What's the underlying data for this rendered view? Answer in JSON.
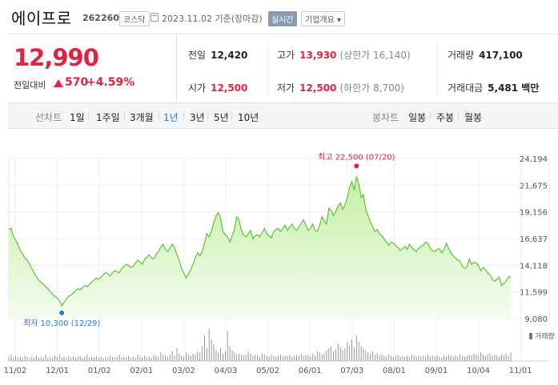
{
  "header": {
    "name": "에이프로",
    "code": "262260",
    "market": "코스닥",
    "date": "2023.11.02 기준(장마감)",
    "realtime_label": "실시간",
    "corp_label": "기업개요 ▾"
  },
  "quote": {
    "price": "12,990",
    "change_label": "전일대비",
    "change": "570",
    "change_pct": "+4.59%",
    "prev_label": "전일",
    "prev": "12,420",
    "high_label": "고가",
    "high": "13,930",
    "upper_limit": "(상한가 16,140)",
    "volume_label": "거래량",
    "volume": "417,100",
    "open_label": "시가",
    "open": "12,500",
    "low_label": "저가",
    "low": "12,500",
    "lower_limit": "(하한가 8,700)",
    "amount_label": "거래대금",
    "amount": "5,481 백만"
  },
  "ranges": {
    "title": "선차트",
    "items": [
      "1일",
      "1주일",
      "3개월",
      "1년",
      "3년",
      "5년",
      "10년"
    ],
    "active": "1년",
    "candle_title": "봉차트",
    "candle_items": [
      "일봉",
      "주봉",
      "월봉"
    ]
  },
  "chart_data": {
    "type": "area",
    "title": "",
    "xlabel": "",
    "ylabel": "",
    "yticks": [
      24194,
      21675,
      19156,
      16637,
      14118,
      11599,
      9080
    ],
    "ylim": [
      9080,
      24194
    ],
    "xticks": [
      "11/02",
      "12/01",
      "01/02",
      "02/01",
      "03/02",
      "04/03",
      "05/02",
      "06/01",
      "07/03",
      "08/01",
      "09/01",
      "10/04",
      "11/01"
    ],
    "grid": true,
    "high_annotation": "최고 22,500 (07/20)",
    "low_annotation": "최저 10,300 (12/29)",
    "high": {
      "date": "07/20",
      "value": 22500
    },
    "low": {
      "date": "12/29",
      "value": 10300
    },
    "series": [
      {
        "values": [
          17500,
          17600,
          16800,
          16500,
          16000,
          15500,
          15200,
          14800,
          14600,
          14200,
          13800,
          13400,
          13000,
          12700,
          12500,
          12300,
          12100,
          11900,
          11600,
          11400,
          11200,
          11000,
          10800,
          10300,
          10600,
          10900,
          11200,
          11300,
          11500,
          11700,
          11900,
          11800,
          12000,
          12200,
          12100,
          12300,
          12500,
          12700,
          12900,
          12800,
          13000,
          13200,
          13400,
          13300,
          13100,
          13400,
          13600,
          13500,
          13400,
          13800,
          14000,
          14200,
          14100,
          13900,
          14000,
          14300,
          14600,
          14400,
          14200,
          14700,
          14900,
          15100,
          14800,
          14700,
          15200,
          15400,
          15800,
          16100,
          15600,
          15400,
          15700,
          16100,
          15800,
          15100,
          14600,
          13800,
          13400,
          12900,
          13300,
          13700,
          14200,
          14800,
          15300,
          15000,
          15400,
          16200,
          17100,
          16800,
          17300,
          18100,
          18800,
          19100,
          18500,
          17300,
          17000,
          16800,
          16300,
          16900,
          17500,
          18700,
          18400,
          17400,
          17000,
          16800,
          17100,
          17400,
          16600,
          16900,
          17000,
          16800,
          17200,
          17600,
          17100,
          16900,
          16700,
          17300,
          17500,
          17600,
          17300,
          17600,
          17900,
          17400,
          17700,
          18000,
          17600,
          17400,
          17700,
          18100,
          18400,
          17900,
          17400,
          17600,
          18000,
          17400,
          17300,
          17900,
          18700,
          18300,
          18000,
          19500,
          19300,
          18800,
          19200,
          19700,
          20000,
          19400,
          19800,
          20500,
          21500,
          22000,
          21200,
          22500,
          21800,
          20500,
          20800,
          19400,
          18800,
          18200,
          17800,
          17300,
          17500,
          17100,
          16900,
          16600,
          16300,
          16000,
          16300,
          16200,
          16000,
          15800,
          15500,
          15700,
          15900,
          15600,
          16100,
          15800,
          15600,
          15400,
          15700,
          15900,
          16000,
          16300,
          16200,
          15700,
          15500,
          15400,
          15600,
          15700,
          15300,
          15600,
          16200,
          15700,
          15300,
          15000,
          14800,
          14600,
          14500,
          14000,
          13800,
          14000,
          14700,
          14200,
          14400,
          14300,
          14100,
          13600,
          13900,
          13700,
          13400,
          13200,
          12800,
          12600,
          12800,
          13000,
          12200,
          12400,
          12600,
          13000,
          12990
        ]
      }
    ],
    "volume": {
      "label": "거래량",
      "values": [
        4,
        6,
        3,
        5,
        3,
        4,
        3,
        5,
        4,
        3,
        4,
        3,
        5,
        3,
        4,
        3,
        6,
        3,
        4,
        3,
        5,
        4,
        6,
        3,
        4,
        3,
        5,
        3,
        4,
        3,
        4,
        5,
        3,
        4,
        6,
        3,
        4,
        3,
        5,
        3,
        4,
        3,
        4,
        3,
        5,
        4,
        3,
        4,
        6,
        3,
        4,
        3,
        5,
        3,
        4,
        3,
        6,
        4,
        3,
        5,
        3,
        4,
        3,
        6,
        5,
        4,
        8,
        6,
        5,
        4,
        6,
        9,
        5,
        12,
        7,
        5,
        4,
        8,
        6,
        5,
        7,
        6,
        9,
        8,
        14,
        24,
        12,
        30,
        20,
        16,
        10,
        8,
        12,
        7,
        9,
        28,
        14,
        10,
        8,
        6,
        7,
        6,
        5,
        6,
        9,
        7,
        5,
        6,
        5,
        4,
        7,
        6,
        5,
        4,
        6,
        5,
        4,
        5,
        6,
        4,
        5,
        5,
        6,
        4,
        5,
        6,
        5,
        7,
        5,
        6,
        5,
        4,
        7,
        5,
        9,
        8,
        6,
        7,
        10,
        12,
        14,
        9,
        11,
        16,
        13,
        10,
        12,
        18,
        14,
        20,
        13,
        24,
        18,
        14,
        12,
        10,
        8,
        7,
        9,
        6,
        7,
        5,
        6,
        5,
        4,
        6,
        5,
        4,
        5,
        6,
        4,
        5,
        4,
        5,
        4,
        6,
        5,
        4,
        5,
        4,
        5,
        4,
        6,
        4,
        5,
        4,
        5,
        4,
        3,
        5,
        4,
        6,
        5,
        4,
        5,
        4,
        6,
        5,
        4,
        5,
        6,
        5,
        7,
        6,
        5,
        8,
        6,
        5,
        6,
        7,
        5,
        6,
        5,
        4,
        6,
        5,
        7,
        5,
        8
      ]
    }
  }
}
